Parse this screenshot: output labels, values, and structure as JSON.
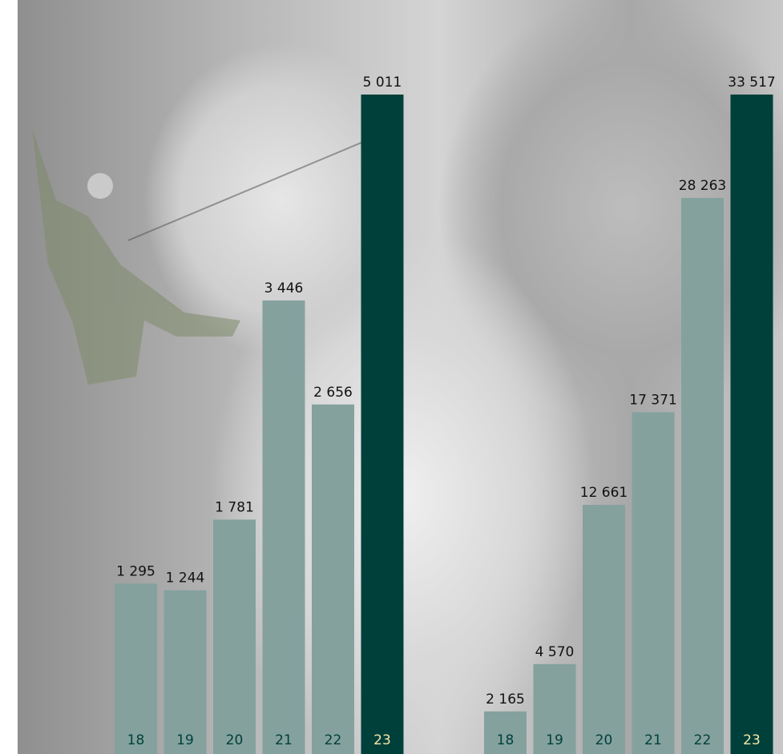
{
  "chart_data": [
    {
      "type": "bar",
      "categories": [
        "18",
        "19",
        "20",
        "21",
        "22",
        "23"
      ],
      "values": [
        1295,
        1244,
        1781,
        3446,
        2656,
        5011
      ],
      "value_labels": [
        "1 295",
        "1 244",
        "1 781",
        "3 446",
        "2 656",
        "5 011"
      ],
      "colors": [
        "#84a19e",
        "#84a19e",
        "#84a19e",
        "#84a19e",
        "#84a19e",
        "#00403a"
      ]
    },
    {
      "type": "bar",
      "categories": [
        "18",
        "19",
        "20",
        "21",
        "22",
        "23"
      ],
      "values": [
        2165,
        4570,
        12661,
        17371,
        28263,
        33517
      ],
      "value_labels": [
        "2 165",
        "4 570",
        "12 661",
        "17 371",
        "28 263",
        "33 517"
      ],
      "colors": [
        "#84a19e",
        "#84a19e",
        "#84a19e",
        "#84a19e",
        "#84a19e",
        "#00403a"
      ]
    }
  ]
}
